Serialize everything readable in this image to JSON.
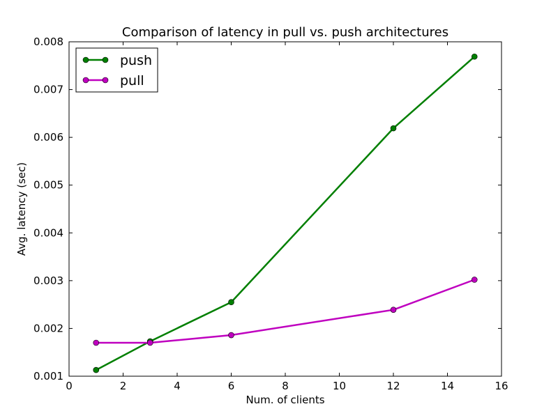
{
  "chart_data": {
    "type": "line",
    "title": "Comparison of latency in pull vs. push architectures",
    "xlabel": "Num. of clients",
    "ylabel": "Avg. latency (sec)",
    "xlim": [
      0,
      16
    ],
    "ylim": [
      0.001,
      0.008
    ],
    "xticks": [
      "0",
      "2",
      "4",
      "6",
      "8",
      "10",
      "12",
      "14",
      "16"
    ],
    "yticks": [
      "0.001",
      "0.002",
      "0.003",
      "0.004",
      "0.005",
      "0.006",
      "0.007",
      "0.008"
    ],
    "grid": false,
    "legend_position": "upper-left",
    "x": [
      1,
      3,
      6,
      12,
      15
    ],
    "series": [
      {
        "name": "push",
        "color": "#007f00",
        "marker": "circle",
        "values": [
          0.00113,
          0.00173,
          0.00255,
          0.00619,
          0.00769
        ]
      },
      {
        "name": "pull",
        "color": "#bf00bf",
        "marker": "circle",
        "values": [
          0.0017,
          0.0017,
          0.00186,
          0.00239,
          0.00302
        ]
      }
    ]
  }
}
